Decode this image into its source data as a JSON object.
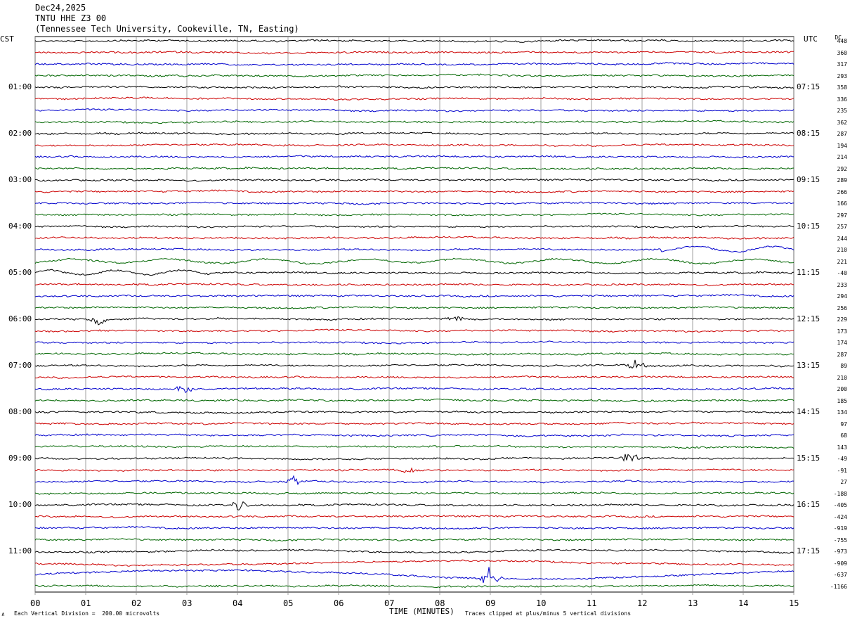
{
  "header": {
    "date": "Dec24,2025",
    "station": "TNTU HHE Z3 00",
    "location": "(Tennessee Tech University, Cookeville, TN, Easting)"
  },
  "left_zone": "CST",
  "right_zone": "UTC",
  "dc_label": "DC",
  "footer": {
    "scale_mark": "∧",
    "scale": "Each Vertical Division =  200.00 microvolts",
    "xlabel": "TIME (MINUTES)",
    "clip": "Traces clipped at plus/minus 5 vertical divisions"
  },
  "chart_data": {
    "type": "line",
    "title": "TNTU HHE Z3 00",
    "xlabel": "TIME (MINUTES)",
    "xlim": [
      0,
      15
    ],
    "x_ticks": [
      "00",
      "01",
      "02",
      "03",
      "04",
      "05",
      "06",
      "07",
      "08",
      "09",
      "10",
      "11",
      "12",
      "13",
      "14",
      "15"
    ],
    "trace_count": 48,
    "trace_colors": [
      "#000000",
      "#cc0000",
      "#0000cc",
      "#006600"
    ],
    "left_hour_labels": [
      "01:00",
      "02:00",
      "03:00",
      "04:00",
      "05:00",
      "06:00",
      "07:00",
      "08:00",
      "09:00",
      "10:00",
      "11:00"
    ],
    "right_hour_labels": [
      "07:15",
      "08:15",
      "09:15",
      "10:15",
      "11:15",
      "12:15",
      "13:15",
      "14:15",
      "15:15",
      "16:15",
      "17:15"
    ],
    "dc_offsets": [
      "448",
      "360",
      "317",
      "293",
      "358",
      "336",
      "235",
      "362",
      "287",
      "194",
      "214",
      "292",
      "289",
      "266",
      "166",
      "297",
      "257",
      "244",
      "210",
      "221",
      "-40",
      "233",
      "294",
      "256",
      "229",
      "173",
      "174",
      "287",
      "89",
      "210",
      "200",
      "185",
      "134",
      "97",
      "68",
      "143",
      "-49",
      "-91",
      "27",
      "-188",
      "-405",
      "-424",
      "-919",
      "-755",
      "-973",
      "-909",
      "-637",
      "-1166"
    ]
  }
}
